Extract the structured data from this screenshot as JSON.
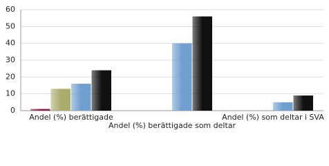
{
  "chart_data": {
    "type": "bar",
    "categories": [
      "Andel (%) berättigade",
      "Andel (%) berättigade som deltar",
      "Andel (%) som deltar i SVA"
    ],
    "series": [
      {
        "color": "#8b1a4a",
        "values": [
          1,
          0,
          0
        ]
      },
      {
        "color": "#a9ad6c",
        "values": [
          13,
          0,
          0
        ]
      },
      {
        "color": "#6f9fcf",
        "values": [
          16,
          40,
          5
        ]
      },
      {
        "color": "#111111",
        "values": [
          24,
          56,
          9
        ]
      }
    ],
    "ylim": [
      0,
      60
    ],
    "yticks": [
      0,
      10,
      20,
      30,
      40,
      50,
      60
    ],
    "grid": true
  }
}
